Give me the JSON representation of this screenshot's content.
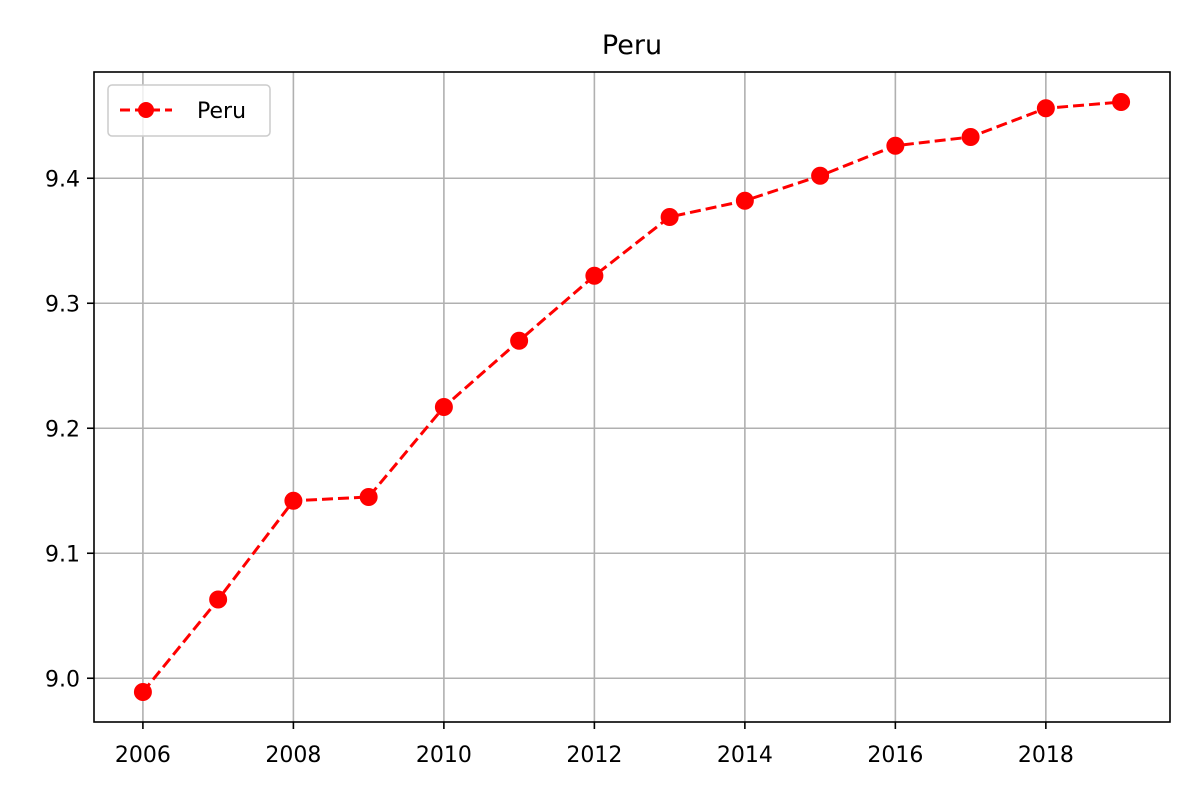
{
  "chart_data": {
    "type": "line",
    "title": "Peru",
    "xlabel": "",
    "ylabel": "",
    "x": [
      2006,
      2007,
      2008,
      2009,
      2010,
      2011,
      2012,
      2013,
      2014,
      2015,
      2016,
      2017,
      2018,
      2019
    ],
    "series": [
      {
        "name": "Peru",
        "values": [
          8.989,
          9.063,
          9.142,
          9.145,
          9.217,
          9.27,
          9.322,
          9.369,
          9.382,
          9.402,
          9.426,
          9.433,
          9.456,
          9.461
        ],
        "color": "#ff0000",
        "line_style": "dashed",
        "marker": "circle"
      }
    ],
    "xticks": [
      "2006",
      "2008",
      "2010",
      "2012",
      "2014",
      "2016",
      "2018"
    ],
    "yticks": [
      "9.0",
      "9.1",
      "9.2",
      "9.3",
      "9.4"
    ],
    "xlim": [
      2005.35,
      2019.65
    ],
    "ylim": [
      8.965,
      9.485
    ],
    "grid": true,
    "legend_position": "top-left"
  }
}
